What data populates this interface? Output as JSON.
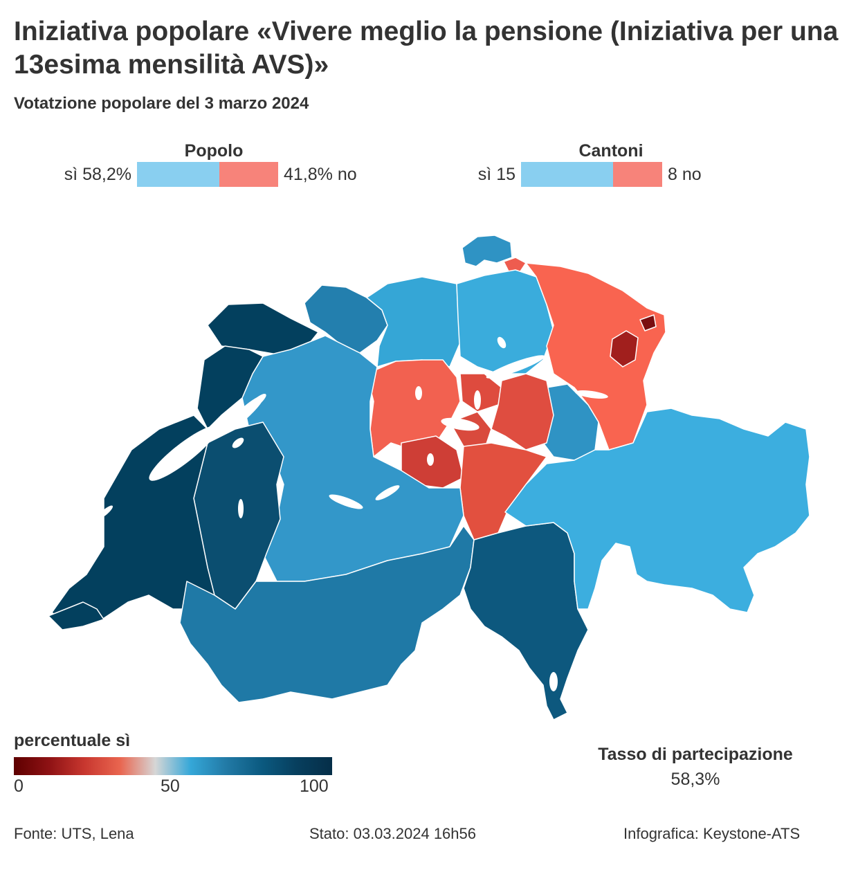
{
  "header": {
    "title": "Iniziativa popolare «Vivere meglio la pensione (Iniziativa per una 13esima mensilità AVS)»",
    "subtitle": "Votatzione popolare del 3 marzo 2024"
  },
  "results": {
    "people": {
      "heading": "Popolo",
      "yes_label": "sì 58,2%",
      "no_label": "41,8% no",
      "yes_share": 0.582
    },
    "cantons": {
      "heading": "Cantoni",
      "yes_label": "sì 15",
      "no_label": "8 no",
      "yes_count": 15,
      "no_count": 8
    }
  },
  "colors": {
    "yes": "#89CFF0",
    "no": "#F7837A",
    "scale": [
      "#5E0000",
      "#8E1214",
      "#C8372F",
      "#E9654F",
      "#D6D6D6",
      "#35A7D8",
      "#227AA6",
      "#0B5A80",
      "#073F5E",
      "#052E48"
    ]
  },
  "legend": {
    "title": "percentuale sì",
    "ticks": [
      "0",
      "50",
      "100"
    ]
  },
  "turnout": {
    "label": "Tasso di partecipazione",
    "value": "58,3%"
  },
  "footer": {
    "source": "Fonte: UTS, Lena",
    "status": "Stato: 03.03.2024 16h56",
    "credit": "Infografica: Keystone-ATS"
  }
}
